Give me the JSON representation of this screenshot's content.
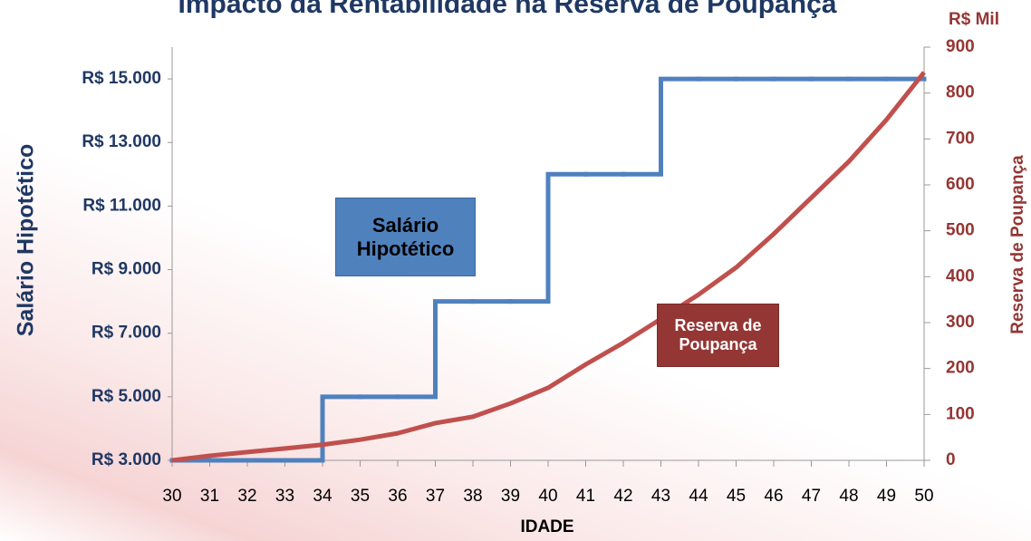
{
  "chart_data": {
    "type": "line",
    "title": "Impacto da Rentabilidade na Reserva de Poupança",
    "x_label": "IDADE",
    "y_label": "Salário Hipotético",
    "y2_label": "Reserva de Poupança",
    "y2_unit": "R$ Mil",
    "x": [
      30,
      31,
      32,
      33,
      34,
      35,
      36,
      37,
      38,
      39,
      40,
      41,
      42,
      43,
      44,
      45,
      46,
      47,
      48,
      49,
      50
    ],
    "xlim": [
      30,
      50
    ],
    "xticks": [
      30,
      31,
      32,
      33,
      34,
      35,
      36,
      37,
      38,
      39,
      40,
      41,
      42,
      43,
      44,
      45,
      46,
      47,
      48,
      49,
      50
    ],
    "ylim": [
      3000,
      16000
    ],
    "yticks": [
      {
        "value": 3000,
        "label": "R$ 3.000"
      },
      {
        "value": 5000,
        "label": "R$ 5.000"
      },
      {
        "value": 7000,
        "label": "R$ 7.000"
      },
      {
        "value": 9000,
        "label": "R$ 9.000"
      },
      {
        "value": 11000,
        "label": "R$ 11.000"
      },
      {
        "value": 13000,
        "label": "R$ 13.000"
      },
      {
        "value": 15000,
        "label": "R$ 15.000"
      }
    ],
    "y2lim": [
      0,
      900
    ],
    "y2ticks": [
      0,
      100,
      200,
      300,
      400,
      500,
      600,
      700,
      800,
      900
    ],
    "grid": false,
    "series": [
      {
        "name": "Salário Hipotético",
        "color": "#4f81bd",
        "step": true,
        "values": [
          3000,
          3000,
          3000,
          3000,
          5000,
          5000,
          5000,
          8000,
          8000,
          8000,
          12000,
          12000,
          12000,
          15000,
          15000,
          15000,
          15000,
          15000,
          15000,
          15000,
          15000
        ]
      },
      {
        "name": "Reserva de Poupança",
        "color": "#c0504d",
        "axis": "y2",
        "step": false,
        "values": [
          0,
          10,
          18,
          26,
          34,
          45,
          59,
          81,
          95,
          124,
          158,
          209,
          256,
          308,
          361,
          420,
          493,
          572,
          651,
          742,
          845
        ]
      }
    ]
  }
}
